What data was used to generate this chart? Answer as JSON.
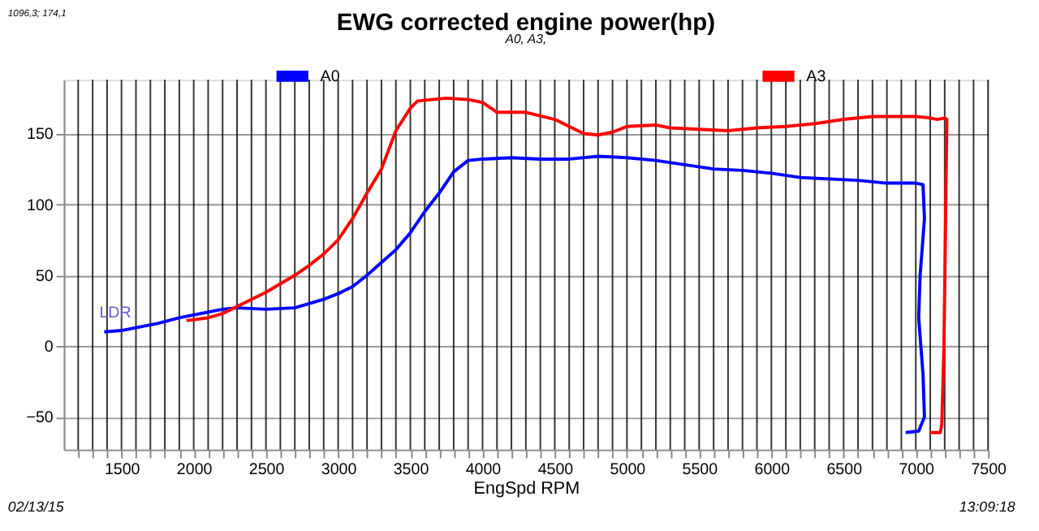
{
  "chart_data": {
    "type": "line",
    "title": "EWG corrected engine power(hp)",
    "subtitle": "A0, A3,",
    "xlabel": "EngSpd RPM",
    "xlim": [
      1100,
      7500
    ],
    "ylim": [
      -73,
      188
    ],
    "xticks": [
      {
        "value": 1200,
        "label": null
      },
      {
        "value": 1300,
        "label": null
      },
      {
        "value": 1400,
        "label": null
      },
      1500,
      {
        "value": 1600,
        "label": null
      },
      {
        "value": 1700,
        "label": null
      },
      {
        "value": 1800,
        "label": null
      },
      {
        "value": 1900,
        "label": null
      },
      2000,
      {
        "value": 2100,
        "label": null
      },
      {
        "value": 2200,
        "label": null
      },
      {
        "value": 2300,
        "label": null
      },
      {
        "value": 2400,
        "label": null
      },
      2500,
      {
        "value": 2600,
        "label": null
      },
      {
        "value": 2700,
        "label": null
      },
      {
        "value": 2800,
        "label": null
      },
      {
        "value": 2900,
        "label": null
      },
      3000,
      {
        "value": 3100,
        "label": null
      },
      {
        "value": 3200,
        "label": null
      },
      {
        "value": 3300,
        "label": null
      },
      {
        "value": 3400,
        "label": null
      },
      3500,
      {
        "value": 3600,
        "label": null
      },
      {
        "value": 3700,
        "label": null
      },
      {
        "value": 3800,
        "label": null
      },
      {
        "value": 3900,
        "label": null
      },
      4000,
      {
        "value": 4100,
        "label": null
      },
      {
        "value": 4200,
        "label": null
      },
      {
        "value": 4300,
        "label": null
      },
      {
        "value": 4400,
        "label": null
      },
      4500,
      {
        "value": 4600,
        "label": null
      },
      {
        "value": 4700,
        "label": null
      },
      {
        "value": 4800,
        "label": null
      },
      {
        "value": 4900,
        "label": null
      },
      5000,
      {
        "value": 5100,
        "label": null
      },
      {
        "value": 5200,
        "label": null
      },
      {
        "value": 5300,
        "label": null
      },
      {
        "value": 5400,
        "label": null
      },
      5500,
      {
        "value": 5600,
        "label": null
      },
      {
        "value": 5700,
        "label": null
      },
      {
        "value": 5800,
        "label": null
      },
      {
        "value": 5900,
        "label": null
      },
      6000,
      {
        "value": 6100,
        "label": null
      },
      {
        "value": 6200,
        "label": null
      },
      {
        "value": 6300,
        "label": null
      },
      {
        "value": 6400,
        "label": null
      },
      6500,
      {
        "value": 6600,
        "label": null
      },
      {
        "value": 6700,
        "label": null
      },
      {
        "value": 6800,
        "label": null
      },
      {
        "value": 6900,
        "label": null
      },
      7000,
      {
        "value": 7100,
        "label": null
      },
      {
        "value": 7200,
        "label": null
      },
      {
        "value": 7300,
        "label": null
      },
      {
        "value": 7400,
        "label": null
      },
      7500
    ],
    "yticks": [
      -50,
      0,
      50,
      100,
      150
    ],
    "grid": true,
    "legend": "top",
    "marker": "none",
    "line_style": "solid",
    "annotations": [
      {
        "text": "LDR",
        "x": 1380,
        "y": 10
      },
      "1096,3; 174,1",
      "02/13/15",
      "13:09:18"
    ],
    "series": [
      {
        "name": "A0",
        "color": "#0000ff",
        "x": [
          1380,
          1500,
          1600,
          1750,
          1900,
          2000,
          2100,
          2200,
          2300,
          2500,
          2700,
          2800,
          2900,
          3000,
          3100,
          3200,
          3300,
          3400,
          3500,
          3600,
          3700,
          3800,
          3900,
          4000,
          4200,
          4400,
          4600,
          4800,
          5000,
          5200,
          5400,
          5600,
          5800,
          6000,
          6200,
          6400,
          6600,
          6800,
          7000,
          7050,
          7060,
          7030,
          7020,
          7050,
          7060,
          7020,
          6930
        ],
        "values": [
          10,
          11,
          13,
          16,
          20,
          22,
          24,
          26,
          27,
          26,
          27,
          30,
          33,
          37,
          42,
          50,
          59,
          68,
          80,
          95,
          108,
          123,
          131,
          132,
          133,
          132,
          132,
          134,
          133,
          131,
          128,
          125,
          124,
          122,
          119,
          118,
          117,
          115,
          115,
          114,
          90,
          50,
          20,
          -20,
          -50,
          -60,
          -61
        ]
      },
      {
        "name": "A3",
        "color": "#ff0000",
        "x": [
          1950,
          2100,
          2200,
          2300,
          2400,
          2500,
          2600,
          2700,
          2800,
          2900,
          3000,
          3100,
          3200,
          3300,
          3400,
          3500,
          3550,
          3650,
          3750,
          3900,
          4000,
          4100,
          4300,
          4500,
          4700,
          4800,
          4900,
          5000,
          5200,
          5300,
          5500,
          5700,
          5900,
          6100,
          6300,
          6500,
          6700,
          6800,
          7000,
          7100,
          7150,
          7200,
          7215,
          7195,
          7180,
          7170,
          7095
        ],
        "values": [
          18,
          20,
          23,
          28,
          33,
          38,
          44,
          50,
          57,
          65,
          75,
          90,
          108,
          125,
          152,
          168,
          173,
          174,
          175,
          174,
          172,
          165,
          165,
          160,
          150,
          149,
          151,
          155,
          156,
          154,
          153,
          152,
          154,
          155,
          157,
          160,
          162,
          162,
          162,
          161,
          160,
          161,
          160,
          0,
          -55,
          -61,
          -61
        ]
      }
    ]
  }
}
